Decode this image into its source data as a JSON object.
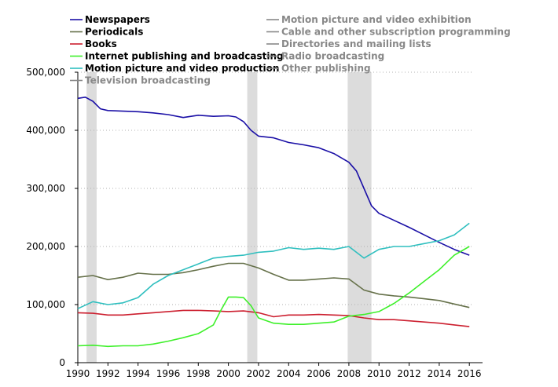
{
  "chart_data": {
    "type": "line",
    "title": "",
    "xlabel": "",
    "ylabel": "",
    "xlim": [
      1990,
      2016.25
    ],
    "ylim": [
      0,
      500000
    ],
    "x_ticks": [
      1990,
      1992,
      1994,
      1996,
      1998,
      2000,
      2002,
      2004,
      2006,
      2008,
      2010,
      2012,
      2014,
      2016
    ],
    "x_tick_labels": [
      "1990",
      "1992",
      "1994",
      "1996",
      "1998",
      "2000",
      "2002",
      "2004",
      "2006",
      "2008",
      "2010",
      "2012",
      "2014",
      "2016"
    ],
    "y_ticks": [
      0,
      100000,
      200000,
      300000,
      400000,
      500000
    ],
    "y_tick_labels": [
      "0",
      "100,000",
      "200,000",
      "300,000",
      "400,000",
      "500,000"
    ],
    "grid": "horizontal dotted",
    "legend_position": "top",
    "recessions": [
      [
        1990.58,
        1991.25
      ],
      [
        2001.25,
        2001.92
      ],
      [
        2007.92,
        2009.5
      ]
    ],
    "series": [
      {
        "name": "Newspapers",
        "color": "#1a0fa6",
        "visible": true,
        "x": [
          1990,
          1990.5,
          1991,
          1991.5,
          1992,
          1993,
          1994,
          1995,
          1996,
          1997,
          1998,
          1999,
          2000,
          2000.5,
          2001,
          2001.5,
          2002,
          2003,
          2004,
          2005,
          2006,
          2007,
          2008,
          2008.5,
          2009,
          2009.5,
          2010,
          2011,
          2012,
          2013,
          2014,
          2015,
          2016
        ],
        "y": [
          455000,
          457000,
          450000,
          437000,
          434000,
          433000,
          432000,
          430000,
          427000,
          422000,
          426000,
          424000,
          425000,
          423000,
          415000,
          400000,
          390000,
          387000,
          379000,
          375000,
          370000,
          360000,
          345000,
          330000,
          300000,
          270000,
          257000,
          245000,
          233000,
          220000,
          207000,
          195000,
          185000
        ]
      },
      {
        "name": "Periodicals",
        "color": "#66714a",
        "visible": true,
        "x": [
          1990,
          1991,
          1992,
          1993,
          1994,
          1995,
          1996,
          1997,
          1998,
          1999,
          2000,
          2001,
          2002,
          2003,
          2004,
          2005,
          2006,
          2007,
          2008,
          2009,
          2010,
          2011,
          2012,
          2013,
          2014,
          2015,
          2016
        ],
        "y": [
          147000,
          150000,
          143000,
          147000,
          154000,
          152000,
          152000,
          155000,
          160000,
          166000,
          171000,
          171000,
          163000,
          152000,
          142000,
          142000,
          144000,
          146000,
          144000,
          125000,
          118000,
          115000,
          113000,
          110000,
          107000,
          101000,
          95000
        ]
      },
      {
        "name": "Books",
        "color": "#cc1f2f",
        "visible": true,
        "x": [
          1990,
          1991,
          1992,
          1993,
          1994,
          1995,
          1996,
          1997,
          1998,
          1999,
          2000,
          2001,
          2002,
          2003,
          2004,
          2005,
          2006,
          2007,
          2008,
          2009,
          2010,
          2011,
          2012,
          2013,
          2014,
          2015,
          2016
        ],
        "y": [
          86000,
          85000,
          82000,
          82000,
          84000,
          86000,
          88000,
          90000,
          90000,
          89000,
          88000,
          89000,
          86000,
          79000,
          82000,
          82000,
          83000,
          82000,
          81000,
          77000,
          74000,
          74000,
          72000,
          70000,
          68000,
          65000,
          62000
        ]
      },
      {
        "name": "Internet publishing and broadcasting",
        "color": "#3ef02a",
        "visible": true,
        "x": [
          1990,
          1991,
          1992,
          1993,
          1994,
          1995,
          1996,
          1997,
          1998,
          1999,
          1999.5,
          2000,
          2000.5,
          2001,
          2001.5,
          2002,
          2003,
          2004,
          2005,
          2006,
          2007,
          2008,
          2009,
          2010,
          2011,
          2012,
          2013,
          2014,
          2015,
          2016
        ],
        "y": [
          29000,
          30000,
          28000,
          29000,
          29000,
          32000,
          37000,
          43000,
          50000,
          65000,
          90000,
          113000,
          113000,
          112000,
          98000,
          77000,
          68000,
          66000,
          66000,
          68000,
          70000,
          80000,
          83000,
          88000,
          102000,
          120000,
          140000,
          160000,
          185000,
          200000
        ]
      },
      {
        "name": "Motion picture and video production",
        "color": "#2fbfbf",
        "visible": true,
        "x": [
          1990,
          1991,
          1992,
          1993,
          1994,
          1995,
          1996,
          1997,
          1998,
          1999,
          2000,
          2001,
          2002,
          2003,
          2004,
          2005,
          2006,
          2007,
          2008,
          2009,
          2010,
          2011,
          2012,
          2013,
          2014,
          2015,
          2016
        ],
        "y": [
          93000,
          105000,
          100000,
          103000,
          112000,
          135000,
          150000,
          160000,
          170000,
          180000,
          183000,
          185000,
          190000,
          192000,
          198000,
          195000,
          197000,
          195000,
          200000,
          180000,
          195000,
          200000,
          200000,
          205000,
          210000,
          220000,
          240000
        ]
      },
      {
        "name": "Motion picture and video exhibition",
        "color": "#888888",
        "visible": false
      },
      {
        "name": "Cable and other subscription programming",
        "color": "#888888",
        "visible": false
      },
      {
        "name": "Directories and mailing lists",
        "color": "#888888",
        "visible": false
      },
      {
        "name": "Other publishing",
        "color": "#888888",
        "visible": false
      },
      {
        "name": "Radio broadcasting",
        "color": "#888888",
        "visible": false
      },
      {
        "name": "Television broadcasting",
        "color": "#888888",
        "visible": false
      }
    ]
  }
}
